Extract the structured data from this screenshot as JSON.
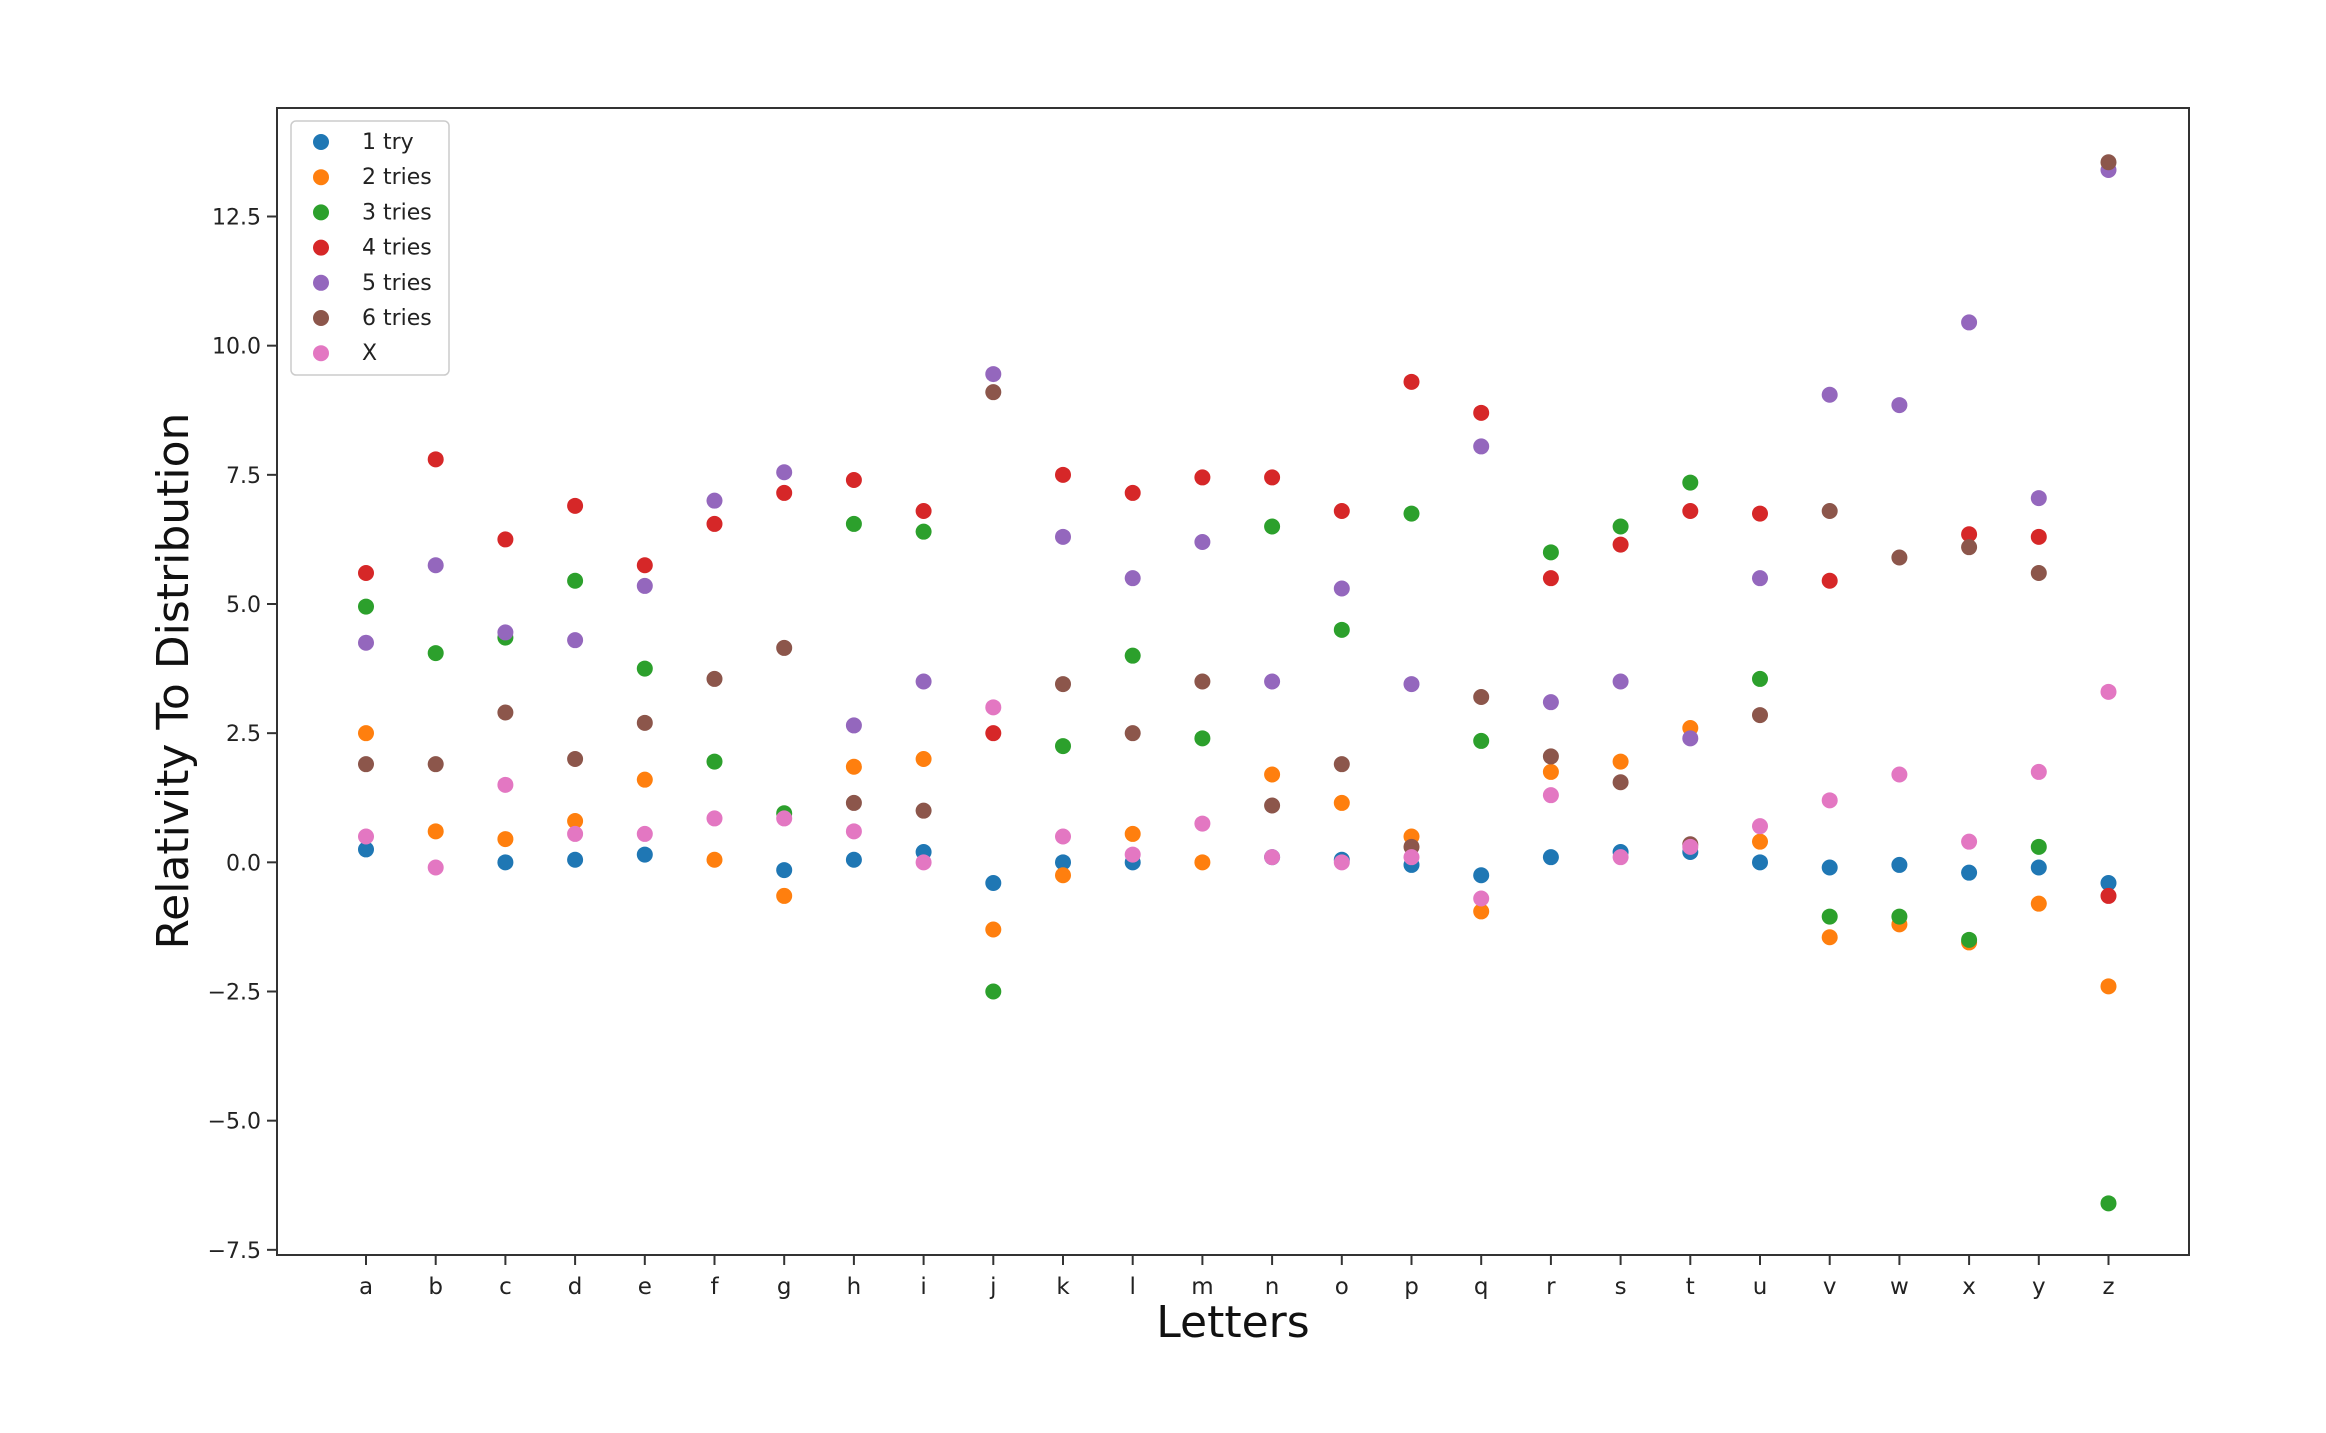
{
  "chart_data": {
    "type": "scatter",
    "title": "",
    "xlabel": "Letters",
    "ylabel": "Relativity To Distribution",
    "categories": [
      "a",
      "b",
      "c",
      "d",
      "e",
      "f",
      "g",
      "h",
      "i",
      "j",
      "k",
      "l",
      "m",
      "n",
      "o",
      "p",
      "q",
      "r",
      "s",
      "t",
      "u",
      "v",
      "w",
      "x",
      "y",
      "z"
    ],
    "ylim": [
      -7.6,
      14.6
    ],
    "yticks": [
      -7.5,
      -5.0,
      -2.5,
      0.0,
      2.5,
      5.0,
      7.5,
      10.0,
      12.5
    ],
    "ytick_labels": [
      "−7.5",
      "−5.0",
      "−2.5",
      "0.0",
      "2.5",
      "5.0",
      "7.5",
      "10.0",
      "12.5"
    ],
    "grid": false,
    "legend_position": "upper-left",
    "series": [
      {
        "name": "1 try",
        "color": "#1f77b4",
        "values": [
          0.25,
          null,
          0.0,
          0.05,
          0.15,
          null,
          -0.15,
          0.05,
          0.2,
          -0.4,
          0.0,
          0.0,
          null,
          0.1,
          0.05,
          -0.05,
          -0.25,
          0.1,
          0.2,
          0.2,
          0.0,
          -0.1,
          -0.05,
          -0.2,
          -0.1,
          -0.4
        ]
      },
      {
        "name": "2 tries",
        "color": "#ff7f0e",
        "values": [
          2.5,
          0.6,
          0.45,
          0.8,
          1.6,
          0.05,
          -0.65,
          1.85,
          2.0,
          -1.3,
          -0.25,
          0.55,
          0.0,
          1.7,
          1.15,
          0.5,
          -0.95,
          1.75,
          1.95,
          2.6,
          0.4,
          -1.45,
          -1.2,
          -1.55,
          -0.8,
          -2.4
        ]
      },
      {
        "name": "3 tries",
        "color": "#2ca02c",
        "values": [
          4.95,
          4.05,
          4.35,
          5.45,
          3.75,
          1.95,
          0.95,
          6.55,
          6.4,
          -2.5,
          2.25,
          4.0,
          2.4,
          6.5,
          4.5,
          6.75,
          2.35,
          6.0,
          6.5,
          7.35,
          3.55,
          -1.05,
          -1.05,
          -1.5,
          0.3,
          -6.6
        ]
      },
      {
        "name": "4 tries",
        "color": "#d62728",
        "values": [
          5.6,
          7.8,
          6.25,
          6.9,
          5.75,
          6.55,
          7.15,
          7.4,
          6.8,
          2.5,
          7.5,
          7.15,
          7.45,
          7.45,
          6.8,
          9.3,
          8.7,
          5.5,
          6.15,
          6.8,
          6.75,
          5.45,
          null,
          6.35,
          6.3,
          -0.65
        ]
      },
      {
        "name": "5 tries",
        "color": "#9467bd",
        "values": [
          4.25,
          5.75,
          4.45,
          4.3,
          5.35,
          7.0,
          7.55,
          2.65,
          3.5,
          9.45,
          6.3,
          5.5,
          6.2,
          3.5,
          5.3,
          3.45,
          8.05,
          3.1,
          3.5,
          2.4,
          5.5,
          9.05,
          8.85,
          10.45,
          7.05,
          13.4
        ]
      },
      {
        "name": "6 tries",
        "color": "#8c564b",
        "values": [
          1.9,
          1.9,
          2.9,
          2.0,
          2.7,
          3.55,
          4.15,
          1.15,
          1.0,
          9.1,
          3.45,
          2.5,
          3.5,
          1.1,
          1.9,
          0.3,
          3.2,
          2.05,
          1.55,
          0.35,
          2.85,
          6.8,
          5.9,
          6.1,
          5.6,
          13.55
        ]
      },
      {
        "name": "X",
        "color": "#e377c2",
        "values": [
          0.5,
          -0.1,
          1.5,
          0.55,
          0.55,
          0.85,
          0.85,
          0.6,
          0.0,
          3.0,
          0.5,
          0.15,
          0.75,
          0.1,
          0.0,
          0.1,
          -0.7,
          1.3,
          0.1,
          0.3,
          0.7,
          1.2,
          1.7,
          0.4,
          1.75,
          3.3
        ]
      }
    ]
  }
}
